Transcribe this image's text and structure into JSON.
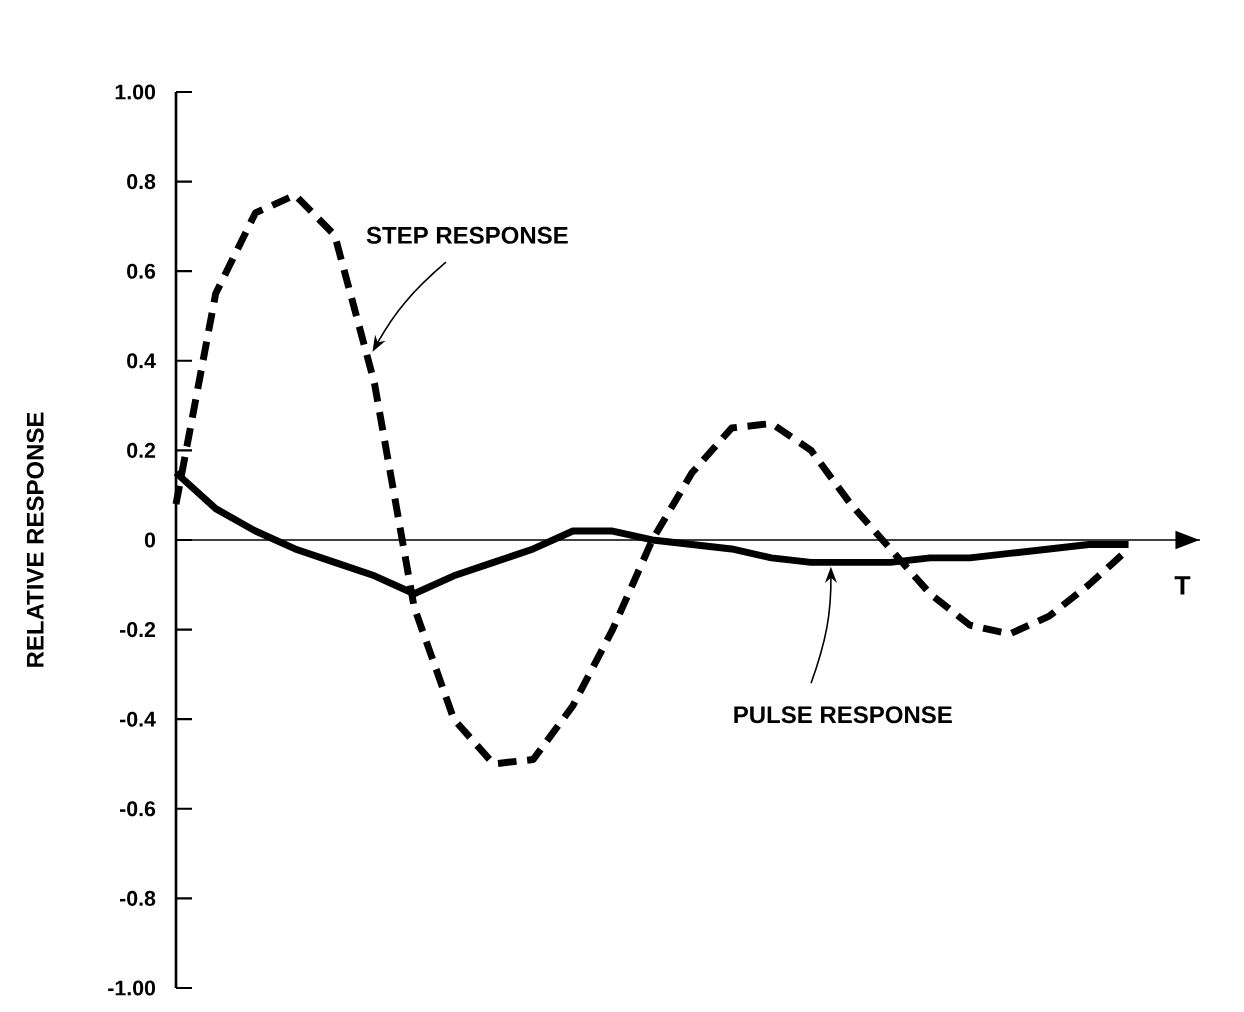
{
  "chart_data": {
    "type": "line",
    "ylabel": "RELATIVE RESPONSE",
    "xlabel": "T",
    "categories": [
      null,
      null,
      null,
      null,
      null,
      null,
      null,
      null,
      null,
      null,
      null,
      null,
      null,
      null,
      null,
      null,
      null,
      null,
      null,
      null,
      null,
      null,
      null,
      null,
      null
    ],
    "series": [
      {
        "name": "STEP RESPONSE",
        "color": "#000000",
        "line_style": "dashed",
        "values": [
          0.08,
          0.55,
          0.73,
          0.77,
          0.68,
          0.35,
          -0.15,
          -0.4,
          -0.5,
          -0.49,
          -0.37,
          -0.2,
          0,
          0.15,
          0.25,
          0.26,
          0.2,
          0.08,
          -0.02,
          -0.12,
          -0.19,
          -0.21,
          -0.17,
          -0.1,
          -0.02
        ]
      },
      {
        "name": "PULSE RESPONSE",
        "color": "#000000",
        "line_style": "solid",
        "values": [
          0.15,
          0.07,
          0.02,
          -0.02,
          -0.05,
          -0.08,
          -0.12,
          -0.08,
          -0.05,
          -0.02,
          0.02,
          0.02,
          0,
          -0.01,
          -0.02,
          -0.04,
          -0.05,
          -0.05,
          -0.05,
          -0.04,
          -0.04,
          -0.03,
          -0.02,
          -0.01,
          -0.01
        ]
      }
    ],
    "ylim": [
      -1,
      1
    ],
    "yticks": [
      {
        "value": 1,
        "label": "1.00"
      },
      0.8,
      0.6,
      0.4,
      0.2,
      0,
      -0.2,
      -0.4,
      -0.6,
      -0.8,
      {
        "value": -1,
        "label": "-1.00"
      }
    ]
  }
}
